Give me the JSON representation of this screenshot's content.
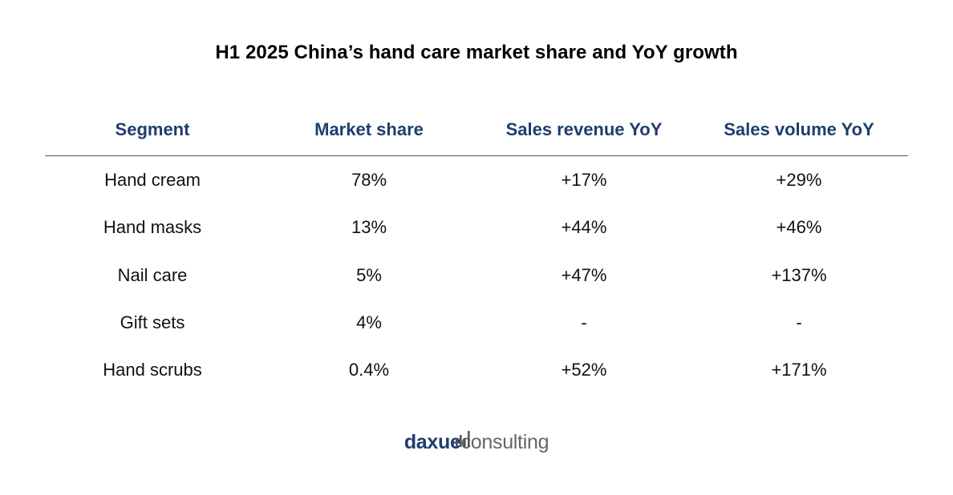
{
  "title": "H1 2025 China’s hand care market share and YoY growth",
  "chart_data": {
    "type": "table",
    "title": "H1 2025 China’s hand care market share and YoY growth",
    "columns": [
      "Segment",
      "Market share",
      "Sales revenue YoY",
      "Sales volume YoY"
    ],
    "rows": [
      [
        "Hand cream",
        "78%",
        "+17%",
        "+29%"
      ],
      [
        "Hand masks",
        "13%",
        "+44%",
        "+46%"
      ],
      [
        "Nail care",
        "5%",
        "+47%",
        "+137%"
      ],
      [
        "Gift sets",
        "4%",
        "-",
        "-"
      ],
      [
        "Hand scrubs",
        "0.4%",
        "+52%",
        "+171%"
      ]
    ]
  },
  "logo": {
    "part1": "daxue",
    "part2": "consulting"
  },
  "colors": {
    "header_text": "#1f3d6e",
    "body_text": "#111111",
    "logo_primary": "#1f3d6e",
    "logo_secondary": "#666666"
  }
}
